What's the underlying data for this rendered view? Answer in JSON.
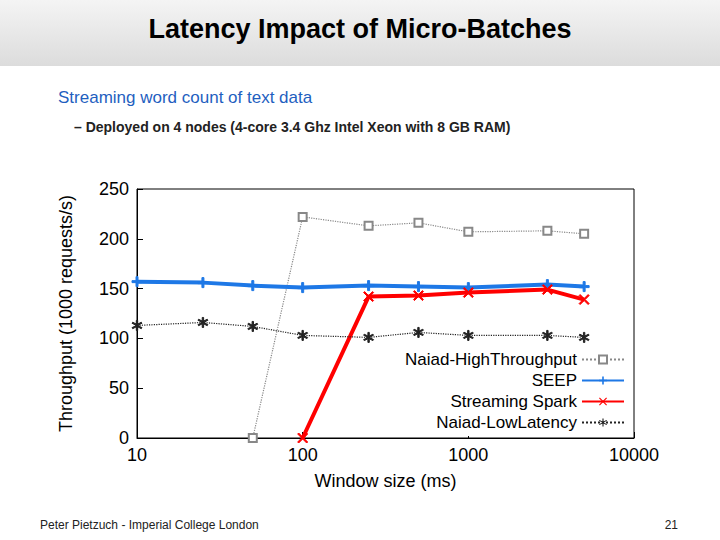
{
  "slide": {
    "title": "Latency Impact of Micro-Batches",
    "subtitle": "Streaming word count of text data",
    "bullet": "– Deployed on 4 nodes (4-core 3.4 Ghz Intel Xeon with 8 GB RAM)",
    "footer": "Peter Pietzuch - Imperial College London",
    "page_number": 21
  },
  "chart_data": {
    "type": "line",
    "x_label": "Window size (ms)",
    "y_label": "Throughput (1000 requests/s)",
    "log": "x",
    "xlim": [
      10,
      10000
    ],
    "xticks": [
      10,
      100,
      1000,
      10000
    ],
    "ylim": [
      0,
      250
    ],
    "yticks": [
      0,
      50,
      100,
      150,
      200,
      250
    ],
    "grid": false,
    "legend": "lower right",
    "series": [
      {
        "name": "Naiad-HighThroughput",
        "color": "#888888",
        "marker": "square",
        "line_style": "dotted",
        "x": [
          50,
          100,
          250,
          500,
          1000,
          3000,
          5000
        ],
        "values": [
          0,
          222,
          213,
          216,
          207,
          208,
          205
        ]
      },
      {
        "name": "SEEP",
        "color": "#1e78e6",
        "marker": "plus",
        "line_style": "solid",
        "x": [
          10,
          25,
          50,
          100,
          250,
          500,
          1000,
          3000,
          5000
        ],
        "values": [
          157,
          156,
          153,
          151,
          153,
          152,
          151,
          154,
          152
        ]
      },
      {
        "name": "Streaming Spark",
        "color": "#ff0000",
        "marker": "cross",
        "line_style": "solid",
        "x": [
          100,
          250,
          500,
          1000,
          3000,
          5000
        ],
        "values": [
          0,
          142,
          143,
          146,
          149,
          139
        ]
      },
      {
        "name": "Naiad-LowLatency",
        "color": "#222222",
        "marker": "star",
        "line_style": "dotted",
        "x": [
          10,
          25,
          50,
          100,
          250,
          500,
          1000,
          3000,
          5000
        ],
        "values": [
          113,
          116,
          112,
          103,
          101,
          106,
          103,
          103,
          101
        ]
      }
    ]
  }
}
